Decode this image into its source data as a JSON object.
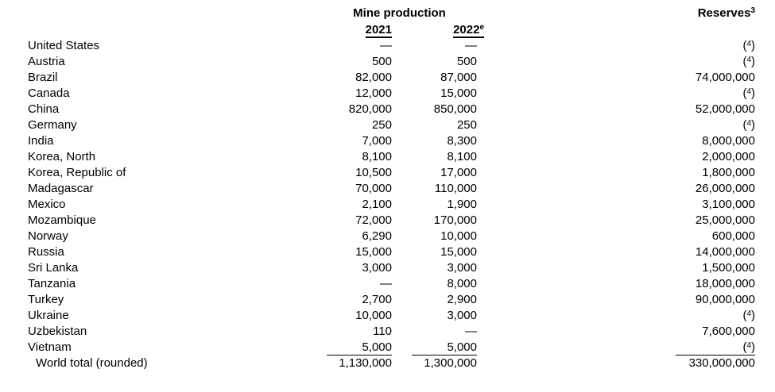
{
  "page": {
    "background": "#ffffff",
    "text_color": "#000000"
  },
  "table": {
    "columns": {
      "group_header": "Mine production",
      "col_2021_label": "2021",
      "col_2022_label": "2022",
      "col_2022_footnote": "e",
      "reserves_label": "Reserves",
      "reserves_footnote": "3"
    },
    "footnote_marker": "4",
    "em_dash": "—",
    "rows": [
      {
        "country": "United States",
        "prod_2021": "—",
        "prod_2022": "—",
        "reserves": "(4)"
      },
      {
        "country": "Austria",
        "prod_2021": "500",
        "prod_2022": "500",
        "reserves": "(4)"
      },
      {
        "country": "Brazil",
        "prod_2021": "82,000",
        "prod_2022": "87,000",
        "reserves": "74,000,000"
      },
      {
        "country": "Canada",
        "prod_2021": "12,000",
        "prod_2022": "15,000",
        "reserves": "(4)"
      },
      {
        "country": "China",
        "prod_2021": "820,000",
        "prod_2022": "850,000",
        "reserves": "52,000,000"
      },
      {
        "country": "Germany",
        "prod_2021": "250",
        "prod_2022": "250",
        "reserves": "(4)"
      },
      {
        "country": "India",
        "prod_2021": "7,000",
        "prod_2022": "8,300",
        "reserves": "8,000,000"
      },
      {
        "country": "Korea, North",
        "prod_2021": "8,100",
        "prod_2022": "8,100",
        "reserves": "2,000,000"
      },
      {
        "country": "Korea, Republic of",
        "prod_2021": "10,500",
        "prod_2022": "17,000",
        "reserves": "1,800,000"
      },
      {
        "country": "Madagascar",
        "prod_2021": "70,000",
        "prod_2022": "110,000",
        "reserves": "26,000,000"
      },
      {
        "country": "Mexico",
        "prod_2021": "2,100",
        "prod_2022": "1,900",
        "reserves": "3,100,000"
      },
      {
        "country": "Mozambique",
        "prod_2021": "72,000",
        "prod_2022": "170,000",
        "reserves": "25,000,000"
      },
      {
        "country": "Norway",
        "prod_2021": "6,290",
        "prod_2022": "10,000",
        "reserves": "600,000"
      },
      {
        "country": "Russia",
        "prod_2021": "15,000",
        "prod_2022": "15,000",
        "reserves": "14,000,000"
      },
      {
        "country": "Sri Lanka",
        "prod_2021": "3,000",
        "prod_2022": "3,000",
        "reserves": "1,500,000"
      },
      {
        "country": "Tanzania",
        "prod_2021": "—",
        "prod_2022": "8,000",
        "reserves": "18,000,000"
      },
      {
        "country": "Turkey",
        "prod_2021": "2,700",
        "prod_2022": "2,900",
        "reserves": "90,000,000"
      },
      {
        "country": "Ukraine",
        "prod_2021": "10,000",
        "prod_2022": "3,000",
        "reserves": "(4)"
      },
      {
        "country": "Uzbekistan",
        "prod_2021": "110",
        "prod_2022": "—",
        "reserves": "7,600,000"
      },
      {
        "country": "Vietnam",
        "prod_2021": "5,000",
        "prod_2022": "5,000",
        "reserves": "(4)"
      }
    ],
    "total_row": {
      "label": "World total (rounded)",
      "prod_2021": "1,130,000",
      "prod_2022": "1,300,000",
      "reserves": "330,000,000"
    }
  }
}
